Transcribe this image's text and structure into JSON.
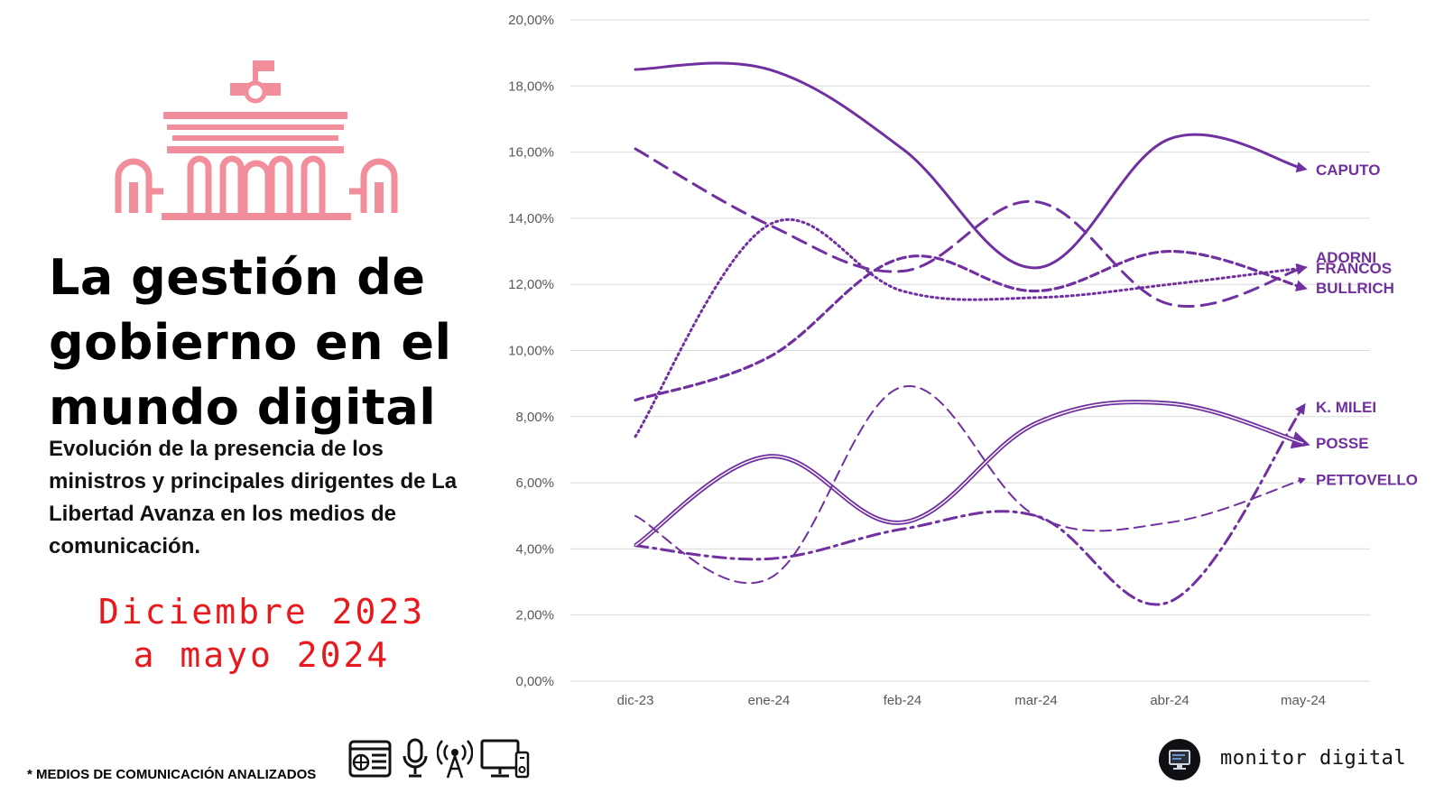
{
  "header": {
    "title_line1": "La gestión de",
    "title_line2": "gobierno en el",
    "title_line3": "mundo digital",
    "subtitle_line1": "Evolución de la presencia de los",
    "subtitle_line2": "ministros y principales dirigentes de La",
    "subtitle_line3": "Libertad Avanza en los medios de",
    "subtitle_line4": "comunicación.",
    "date_line1": "Diciembre 2023",
    "date_line2": "a mayo 2024"
  },
  "footer": {
    "media_label": "* MEDIOS DE COMUNICACIÓN ANALIZADOS",
    "media_icons": [
      "newspaper-web-icon",
      "microphone-icon",
      "radio-antenna-icon",
      "tv-monitor-icon"
    ],
    "brand_name": "monitor digital",
    "brand_icon": "monitor-logo-icon"
  },
  "colors": {
    "series": "#7030a0",
    "building": "#f28e9c",
    "date": "#e8191c",
    "grid": "#d9d9d9",
    "axis_text": "#595959"
  },
  "chart_data": {
    "type": "line",
    "x": [
      "dic-23",
      "ene-24",
      "feb-24",
      "mar-24",
      "abr-24",
      "may-24"
    ],
    "ylim": [
      0,
      20
    ],
    "y_ticks": [
      "0,00%",
      "2,00%",
      "4,00%",
      "6,00%",
      "8,00%",
      "10,00%",
      "12,00%",
      "14,00%",
      "16,00%",
      "18,00%",
      "20,00%"
    ],
    "grid": true,
    "legend": "inline labels at line ends (right)",
    "series": [
      {
        "name": "CAPUTO",
        "style": "solid",
        "values": [
          18.5,
          18.5,
          16.1,
          12.5,
          16.4,
          15.5
        ]
      },
      {
        "name": "ADORNI",
        "style": "dashed-long",
        "values": [
          16.1,
          13.8,
          12.4,
          14.5,
          11.4,
          12.5
        ]
      },
      {
        "name": "FRANCOS",
        "style": "dotted",
        "values": [
          7.4,
          13.8,
          11.8,
          11.6,
          12.0,
          12.5
        ]
      },
      {
        "name": "BULLRICH",
        "style": "dashed-short",
        "values": [
          8.5,
          9.8,
          12.8,
          11.8,
          13.0,
          11.9
        ]
      },
      {
        "name": "K. MILEI",
        "style": "dash-dot",
        "values": [
          4.1,
          3.7,
          4.6,
          5.0,
          2.4,
          8.3
        ]
      },
      {
        "name": "POSSE",
        "style": "double",
        "values": [
          4.1,
          6.8,
          4.8,
          7.8,
          8.4,
          7.2
        ]
      },
      {
        "name": "PETTOVELLO",
        "style": "dashed-thin",
        "values": [
          5.0,
          3.1,
          8.9,
          5.0,
          4.8,
          6.1
        ]
      }
    ]
  }
}
